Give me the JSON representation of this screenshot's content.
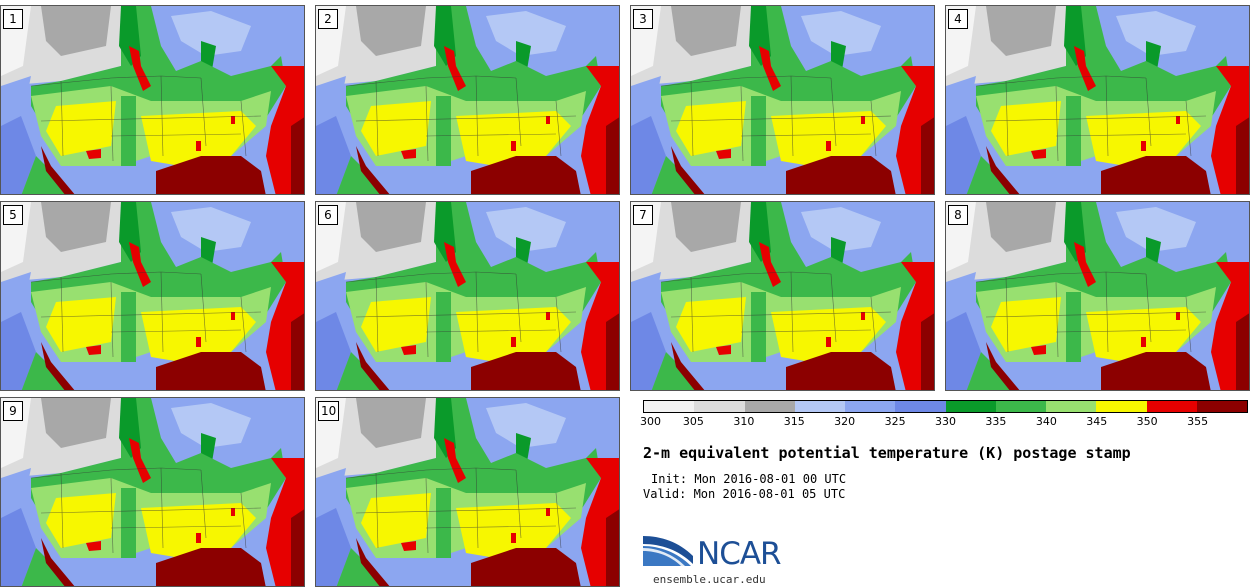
{
  "panels": [
    {
      "label": "1"
    },
    {
      "label": "2"
    },
    {
      "label": "3"
    },
    {
      "label": "4"
    },
    {
      "label": "5"
    },
    {
      "label": "6"
    },
    {
      "label": "7"
    },
    {
      "label": "8"
    },
    {
      "label": "9"
    },
    {
      "label": "10"
    }
  ],
  "colorbar": {
    "ticks": [
      "300",
      "305",
      "310",
      "315",
      "320",
      "325",
      "330",
      "335",
      "340",
      "345",
      "350",
      "355"
    ],
    "colors": [
      "#f2f2f2",
      "#dcdcdc",
      "#a8a8a8",
      "#b4c8f5",
      "#8ca6f0",
      "#6e88e6",
      "#0a9a2a",
      "#3cb84a",
      "#98e070",
      "#f7f700",
      "#e60000",
      "#8c0000"
    ]
  },
  "title": "2-m equivalent potential temperature (K) postage stamp",
  "init": "Init: Mon 2016-08-01 00 UTC",
  "valid": "Valid: Mon 2016-08-01 05 UTC",
  "logo": {
    "text": "NCAR",
    "url": "ensemble.ucar.edu"
  }
}
